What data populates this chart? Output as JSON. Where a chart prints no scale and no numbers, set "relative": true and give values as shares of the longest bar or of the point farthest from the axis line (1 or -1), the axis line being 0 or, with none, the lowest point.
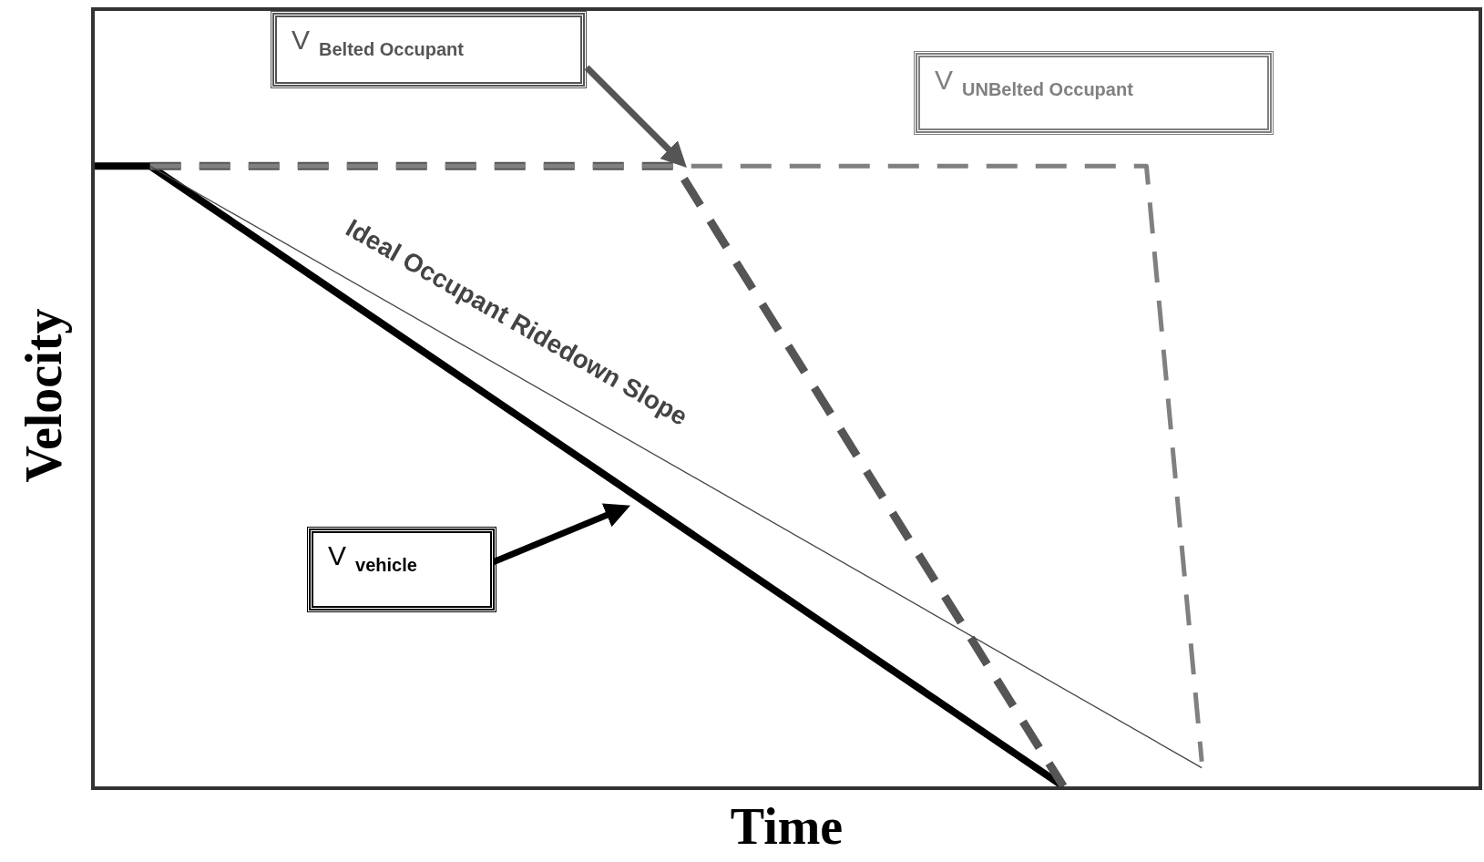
{
  "chart_data": {
    "type": "line",
    "xlabel": "Time",
    "ylabel": "Velocity",
    "relative": true,
    "tick_labels": false,
    "grid": false,
    "legend": false,
    "marker": "none",
    "categories": [
      null,
      null,
      null,
      null,
      null,
      null,
      null,
      null,
      null,
      null,
      null,
      null,
      null,
      null,
      null,
      null,
      null,
      null,
      null,
      null,
      null,
      null,
      null,
      null,
      null,
      null,
      null,
      null,
      null,
      null,
      null,
      null,
      null,
      null,
      null,
      null,
      null,
      null,
      null,
      null,
      null,
      null,
      null,
      null,
      null,
      null,
      null,
      null,
      null,
      null,
      null
    ],
    "series": [
      {
        "name": "V$_{vehicle}$",
        "color": "#000000",
        "line_style": "solid",
        "values": [
          1,
          null,
          1,
          null,
          null,
          null,
          null,
          null,
          null,
          null,
          null,
          null,
          null,
          null,
          null,
          null,
          null,
          null,
          null,
          null,
          null,
          null,
          null,
          null,
          null,
          null,
          null,
          null,
          null,
          null,
          null,
          null,
          null,
          null,
          null,
          0,
          null,
          null,
          null,
          null,
          null,
          null,
          null,
          null,
          null,
          null,
          null,
          null,
          null,
          null,
          null
        ]
      },
      {
        "name": "V$_{Belted Occupant}$",
        "color": "#555555",
        "line_style": "dashed",
        "values": [
          null,
          null,
          1,
          null,
          null,
          null,
          null,
          null,
          null,
          null,
          null,
          null,
          null,
          null,
          null,
          null,
          null,
          null,
          null,
          null,
          null,
          1,
          null,
          null,
          null,
          null,
          null,
          null,
          null,
          null,
          null,
          null,
          null,
          null,
          null,
          0,
          null,
          null,
          null,
          null,
          null,
          null,
          null,
          null,
          null,
          null,
          null,
          null,
          null,
          null,
          null
        ]
      },
      {
        "name": "V$_{UNBelted Occupant}$",
        "color": "#808080",
        "line_style": "dashed",
        "values": [
          null,
          null,
          1,
          null,
          null,
          null,
          null,
          null,
          null,
          null,
          null,
          null,
          null,
          null,
          null,
          null,
          null,
          null,
          null,
          null,
          null,
          null,
          null,
          null,
          null,
          null,
          null,
          null,
          null,
          null,
          null,
          null,
          null,
          null,
          null,
          null,
          null,
          null,
          1,
          null,
          0.04,
          null,
          null,
          null,
          null,
          null,
          null,
          null,
          null,
          null,
          null
        ]
      },
      {
        "name": "Ideal Occupant Ridedown Slope",
        "color": "#444444",
        "line_style": "solid",
        "values": [
          null,
          null,
          1,
          null,
          null,
          null,
          null,
          null,
          null,
          null,
          null,
          null,
          null,
          null,
          null,
          null,
          null,
          null,
          null,
          null,
          null,
          null,
          null,
          null,
          null,
          null,
          null,
          null,
          null,
          null,
          null,
          null,
          null,
          null,
          null,
          null,
          null,
          null,
          null,
          null,
          0.03,
          null,
          null,
          null,
          null,
          null,
          null,
          null,
          null,
          null,
          null
        ]
      }
    ]
  }
}
